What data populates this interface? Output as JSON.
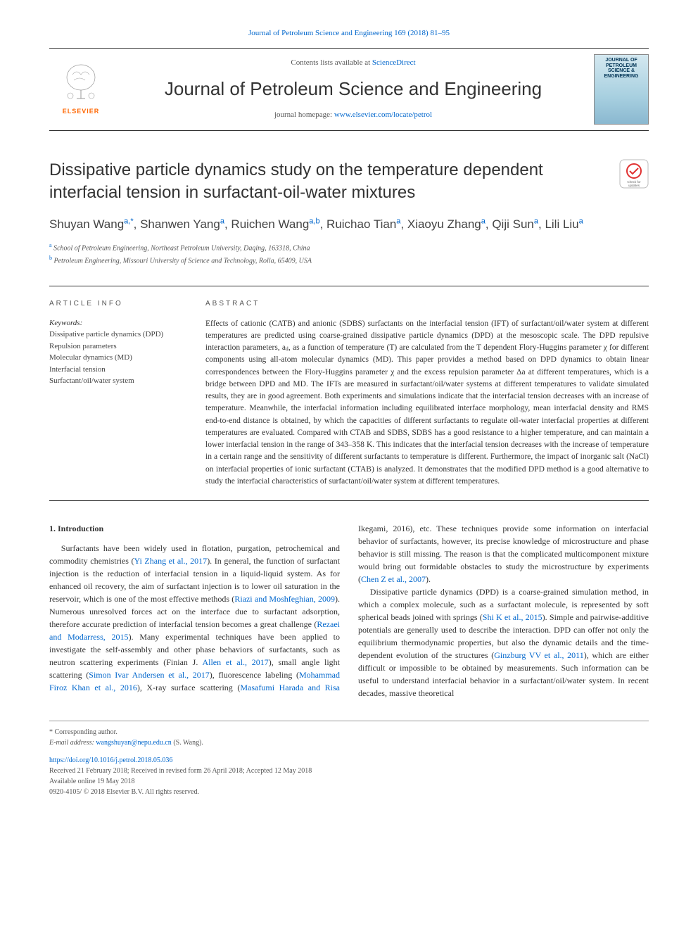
{
  "header": {
    "top_citation": "Journal of Petroleum Science and Engineering 169 (2018) 81–95",
    "contents_prefix": "Contents lists available at ",
    "contents_link": "ScienceDirect",
    "journal_title": "Journal of Petroleum Science and Engineering",
    "homepage_prefix": "journal homepage: ",
    "homepage_url": "www.elsevier.com/locate/petrol",
    "elsevier_label": "ELSEVIER",
    "cover_text": "JOURNAL OF PETROLEUM SCIENCE & ENGINEERING"
  },
  "article": {
    "title": "Dissipative particle dynamics study on the temperature dependent interfacial tension in surfactant-oil-water mixtures",
    "authors_html": "Shuyan Wang<a class='aff'>a,*</a>, Shanwen Yang<a class='aff'>a</a>, Ruichen Wang<a class='aff'>a,b</a>, Ruichao Tian<a class='aff'>a</a>, Xiaoyu Zhang<a class='aff'>a</a>, Qiji Sun<a class='aff'>a</a>, Lili Liu<a class='aff'>a</a>",
    "affiliations": [
      {
        "label": "a",
        "text": "School of Petroleum Engineering, Northeast Petroleum University, Daqing, 163318, China"
      },
      {
        "label": "b",
        "text": "Petroleum Engineering, Missouri University of Science and Technology, Rolla, 65409, USA"
      }
    ]
  },
  "info": {
    "label": "ARTICLE INFO",
    "keywords_header": "Keywords:",
    "keywords": [
      "Dissipative particle dynamics (DPD)",
      "Repulsion parameters",
      "Molecular dynamics (MD)",
      "Interfacial tension",
      "Surfactant/oil/water system"
    ]
  },
  "abstract": {
    "label": "ABSTRACT",
    "text": "Effects of cationic (CATB) and anionic (SDBS) surfactants on the interfacial tension (IFT) of surfactant/oil/water system at different temperatures are predicted using coarse-grained dissipative particle dynamics (DPD) at the mesoscopic scale. The DPD repulsive interaction parameters, aᵢⱼ, as a function of temperature (T) are calculated from the T dependent Flory-Huggins parameter χ for different components using all-atom molecular dynamics (MD). This paper provides a method based on DPD dynamics to obtain linear correspondences between the Flory-Huggins parameter χ and the excess repulsion parameter Δa at different temperatures, which is a bridge between DPD and MD. The IFTs are measured in surfactant/oil/water systems at different temperatures to validate simulated results, they are in good agreement. Both experiments and simulations indicate that the interfacial tension decreases with an increase of temperature. Meanwhile, the interfacial information including equilibrated interface morphology, mean interfacial density and RMS end-to-end distance is obtained, by which the capacities of different surfactants to regulate oil-water interfacial properties at different temperatures are evaluated. Compared with CTAB and SDBS, SDBS has a good resistance to a higher temperature, and can maintain a lower interfacial tension in the range of 343–358 K. This indicates that the interfacial tension decreases with the increase of temperature in a certain range and the sensitivity of different surfactants to temperature is different. Furthermore, the impact of inorganic salt (NaCl) on interfacial properties of ionic surfactant (CTAB) is analyzed. It demonstrates that the modified DPD method is a good alternative to study the interfacial characteristics of surfactant/oil/water system at different temperatures."
  },
  "body": {
    "h1": "1. Introduction",
    "p1": "Surfactants have been widely used in flotation, purgation, petrochemical and commodity chemistries (<span class='cite'>Yi Zhang et al., 2017</span>). In general, the function of surfactant injection is the reduction of interfacial tension in a liquid-liquid system. As for enhanced oil recovery, the aim of surfactant injection is to lower oil saturation in the reservoir, which is one of the most effective methods (<span class='cite'>Riazi and Moshfeghian, 2009</span>). Numerous unresolved forces act on the interface due to surfactant adsorption, therefore accurate prediction of interfacial tension becomes a great challenge (<span class='cite'>Rezaei and Modarress, 2015</span>). Many experimental techniques have been applied to investigate the self-assembly and other phase behaviors of surfactants, such as neutron scattering experiments (Finian J. <span class='cite'>Allen et al., 2017</span>), small angle light scattering (<span class='cite'>Simon Ivar Andersen et al., 2017</span>), fluorescence labeling (<span class='cite'>Mohammad Firoz Khan et al., 2016</span>), X-ray surface scattering (<span class='cite'>Masafumi Harada and Risa ",
    "p1_cont": "Ikegami, 2016</span>), etc. These techniques provide some information on interfacial behavior of surfactants, however, its precise knowledge of microstructure and phase behavior is still missing. The reason is that the complicated multicomponent mixture would bring out formidable obstacles to study the microstructure by experiments (<span class='cite'>Chen Z et al., 2007</span>).",
    "p2": "Dissipative particle dynamics (DPD) is a coarse-grained simulation method, in which a complex molecule, such as a surfactant molecule, is represented by soft spherical beads joined with springs (<span class='cite'>Shi K et al., 2015</span>). Simple and pairwise-additive potentials are generally used to describe the interaction. DPD can offer not only the equilibrium thermodynamic properties, but also the dynamic details and the time-dependent evolution of the structures (<span class='cite'>Ginzburg VV et al., 2011</span>), which are either difficult or impossible to be obtained by measurements. Such information can be useful to understand interfacial behavior in a surfactant/oil/water system. In recent decades, massive theoretical"
  },
  "footer": {
    "corresponding": "* Corresponding author.",
    "email_label": "E-mail address: ",
    "email": "wangshuyan@nepu.edu.cn",
    "email_suffix": " (S. Wang).",
    "doi": "https://doi.org/10.1016/j.petrol.2018.05.036",
    "received": "Received 21 February 2018; Received in revised form 26 April 2018; Accepted 12 May 2018",
    "available": "Available online 19 May 2018",
    "copyright": "0920-4105/ © 2018 Elsevier B.V. All rights reserved."
  },
  "colors": {
    "link": "#0066cc",
    "text": "#333333",
    "elsevier_orange": "#ff6600",
    "rule": "#333333"
  }
}
